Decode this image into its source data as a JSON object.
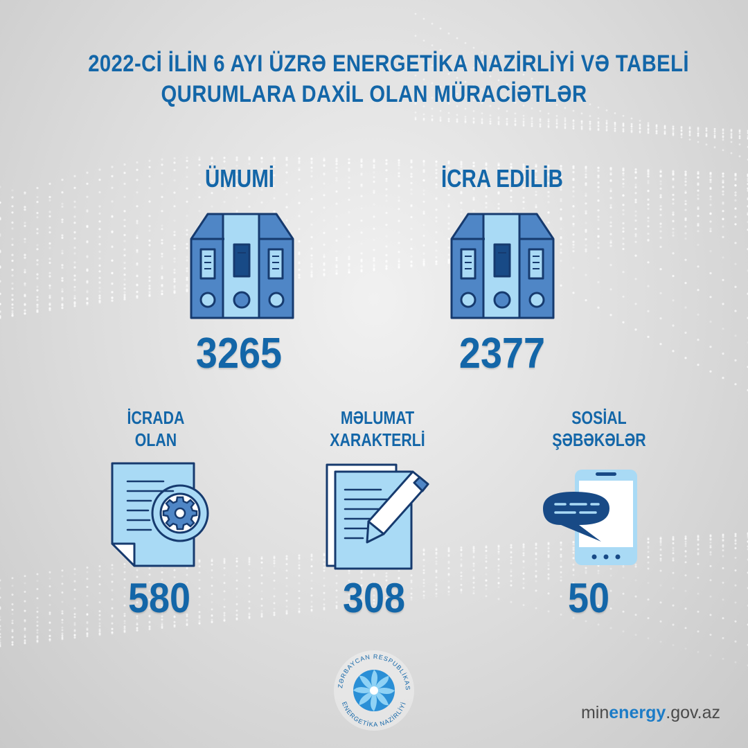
{
  "title": {
    "line1": "2022-Cİ İLİN 6 AYI ÜZRƏ ENERGETİKA NAZİRLİYİ VƏ TABELİ",
    "line2": "QURUMLARA DAXİL OLAN MÜRACİƏTLƏR"
  },
  "stats": {
    "total": {
      "label": "ÜMUMİ",
      "value": "3265",
      "icon": "binders-icon"
    },
    "executed": {
      "label": "İCRA EDİLİB",
      "value": "2377",
      "icon": "binders-icon"
    },
    "in_progress": {
      "label_line1": "İCRADA",
      "label_line2": "OLAN",
      "value": "580",
      "icon": "document-gear-icon"
    },
    "informational": {
      "label_line1": "MƏLUMAT",
      "label_line2": "XARAKTERLİ",
      "value": "308",
      "icon": "document-pen-icon"
    },
    "social": {
      "label_line1": "SOSİAL",
      "label_line2": "ŞƏBƏKƏLƏR",
      "value": "50",
      "icon": "phone-chat-icon"
    }
  },
  "logo": {
    "text_top": "AZƏRBAYCAN RESPUBLİKASI",
    "text_bottom": "ENERGETİKA NAZİRLİYİ",
    "icon": "swirl-emblem-icon"
  },
  "footer": {
    "site_prefix": "min",
    "site_bold": "energy",
    "site_suffix": ".gov.az"
  },
  "colors": {
    "primary": "#1366a8",
    "dark": "#184a86",
    "light": "#a9daf5",
    "mid": "#4f86c6",
    "outline": "#163a6e"
  }
}
